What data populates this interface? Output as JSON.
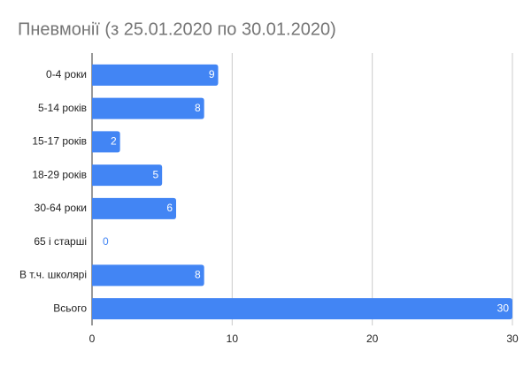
{
  "chart_data": {
    "type": "bar",
    "orientation": "horizontal",
    "title": "Пневмонії (з 25.01.2020 по 30.01.2020)",
    "categories": [
      "0-4 роки",
      "5-14 років",
      "15-17 років",
      "18-29 років",
      "30-64 роки",
      "65 і старші",
      "В т.ч. школярі",
      "Всього"
    ],
    "values": [
      9,
      8,
      2,
      5,
      6,
      0,
      8,
      30
    ],
    "color": "#4285f4",
    "xlim": [
      0,
      30
    ],
    "xticks": [
      0,
      10,
      20,
      30
    ],
    "grid": true
  }
}
